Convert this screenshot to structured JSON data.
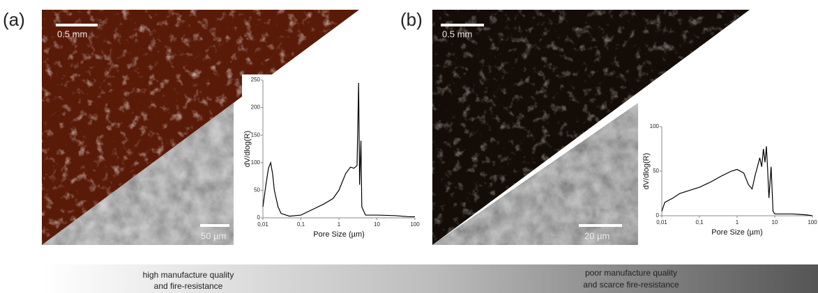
{
  "panels": [
    {
      "label": "(a)",
      "scale_top": "0.5 mm",
      "scale_bottom": "50 µm"
    },
    {
      "label": "(b)",
      "scale_top": "0.5 mm",
      "scale_bottom": "20 µm"
    }
  ],
  "quality_scale": {
    "left": [
      "high manufacture quality",
      "and fire-resistance"
    ],
    "right": [
      "poor manufacture quality",
      "and scarce fire-resistance"
    ]
  },
  "chart_data": [
    {
      "type": "line",
      "xlabel": "Pore Size (µm)",
      "ylabel": "dV/dlog(R)",
      "xscale": "log",
      "x": [
        0.01,
        0.012,
        0.014,
        0.016,
        0.018,
        0.02,
        0.025,
        0.03,
        0.05,
        0.1,
        0.2,
        0.4,
        0.7,
        1,
        1.5,
        2,
        2.5,
        3,
        3.3,
        3.5,
        3.8,
        4,
        5,
        10,
        30,
        70,
        100
      ],
      "series": [
        {
          "color": "#000000",
          "values": [
            20,
            60,
            90,
            100,
            80,
            50,
            20,
            8,
            3,
            5,
            15,
            25,
            35,
            50,
            80,
            92,
            90,
            95,
            245,
            60,
            140,
            20,
            5,
            5,
            4,
            2,
            2
          ]
        }
      ],
      "xlim": [
        0.01,
        100
      ],
      "xticks": [
        {
          "value": 0.01,
          "label": "0,01"
        },
        {
          "value": 0.1,
          "label": "0,1"
        },
        1,
        10,
        100
      ],
      "ylim": [
        0,
        250
      ],
      "yticks": [
        0,
        50,
        100,
        150,
        200,
        250
      ]
    },
    {
      "type": "line",
      "xlabel": "Pore Size (µm)",
      "ylabel": "dV/dlog(R)",
      "xscale": "log",
      "x": [
        0.01,
        0.012,
        0.02,
        0.03,
        0.05,
        0.1,
        0.2,
        0.4,
        0.7,
        1,
        1.5,
        2,
        2.5,
        3,
        4,
        4.5,
        5,
        5.5,
        6,
        6.5,
        7,
        8,
        9,
        10,
        30,
        70,
        100
      ],
      "series": [
        {
          "color": "#000000",
          "values": [
            5,
            15,
            20,
            25,
            28,
            32,
            38,
            45,
            50,
            52,
            48,
            35,
            30,
            45,
            65,
            55,
            75,
            60,
            78,
            50,
            20,
            55,
            5,
            2,
            2,
            1,
            0
          ]
        }
      ],
      "xlim": [
        0.01,
        100
      ],
      "xticks": [
        {
          "value": 0.01,
          "label": "0,01"
        },
        {
          "value": 0.1,
          "label": "0,1"
        },
        1,
        10,
        100
      ],
      "ylim": [
        0,
        100
      ],
      "yticks": [
        0,
        50,
        100
      ]
    }
  ]
}
